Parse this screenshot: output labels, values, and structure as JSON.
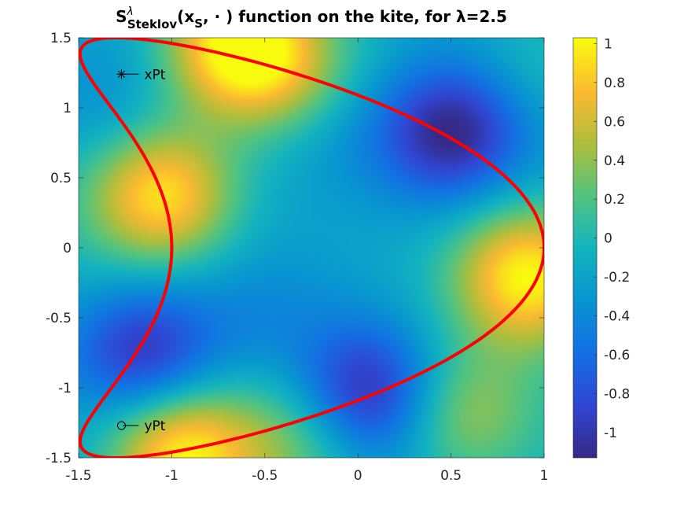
{
  "chart_data": {
    "type": "heatmap",
    "title": {
      "symbol": "S",
      "superscript": "λ",
      "subscript": "Steklov",
      "arg_open": "(x",
      "arg_sub": "S",
      "arg_close": ", · ) function on the kite, for λ=2.5"
    },
    "xlabel": "",
    "ylabel": "",
    "xlim": [
      -1.5,
      1
    ],
    "ylim": [
      -1.5,
      1.5
    ],
    "x_ticks": [
      "-1.5",
      "-1",
      "-0.5",
      "0",
      "0.5",
      "1"
    ],
    "x_tick_values": [
      -1.5,
      -1,
      -0.5,
      0,
      0.5,
      1
    ],
    "y_ticks": [
      "1.5",
      "1",
      "0.5",
      "0",
      "-0.5",
      "-1",
      "-1.5"
    ],
    "y_tick_values": [
      1.5,
      1,
      0.5,
      0,
      -0.5,
      -1,
      -1.5
    ],
    "colorbar": {
      "colormap": "parula",
      "limits": [
        -1.13,
        1.03
      ],
      "ticks": [
        "1",
        "0.8",
        "0.6",
        "0.4",
        "0.2",
        "0",
        "-0.2",
        "-0.4",
        "-0.6",
        "-0.8",
        "-1"
      ],
      "tick_values": [
        1,
        0.8,
        0.6,
        0.4,
        0.2,
        0,
        -0.2,
        -0.4,
        -0.6,
        -0.8,
        -1
      ]
    },
    "field_blobs": [
      {
        "x": -0.65,
        "y": 1.45,
        "value": 1.0
      },
      {
        "x": -1.05,
        "y": 0.38,
        "value": 0.95
      },
      {
        "x": 0.92,
        "y": -0.2,
        "value": 1.0
      },
      {
        "x": -0.95,
        "y": -1.48,
        "value": 1.0
      },
      {
        "x": 0.5,
        "y": 0.82,
        "value": -1.15
      },
      {
        "x": 0.05,
        "y": -1.05,
        "value": -1.1
      },
      {
        "x": -1.15,
        "y": -0.75,
        "value": -1.05
      },
      {
        "x": -1.4,
        "y": 1.0,
        "value": -0.35
      },
      {
        "x": -0.1,
        "y": 0.8,
        "value": -0.35
      },
      {
        "x": 0.25,
        "y": 0.2,
        "value": -0.2
      },
      {
        "x": -0.55,
        "y": -0.5,
        "value": -0.35
      },
      {
        "x": 0.55,
        "y": -1.2,
        "value": 0.45
      },
      {
        "x": -0.3,
        "y": -1.35,
        "value": 0.35
      },
      {
        "x": 0.95,
        "y": 1.3,
        "value": 0.05
      },
      {
        "x": -0.4,
        "y": 1.25,
        "value": 0.3
      }
    ],
    "boundary": {
      "name": "kite",
      "color": "#ff0000",
      "parametrization": "x = cos(t) + 0.65 cos(2t) - 0.65, y = 1.5 sin(t)"
    },
    "points": [
      {
        "label": "xPt",
        "x": -1.27,
        "y": 1.24,
        "marker": "asterisk"
      },
      {
        "label": "yPt",
        "x": -1.27,
        "y": -1.27,
        "marker": "circle"
      }
    ]
  }
}
